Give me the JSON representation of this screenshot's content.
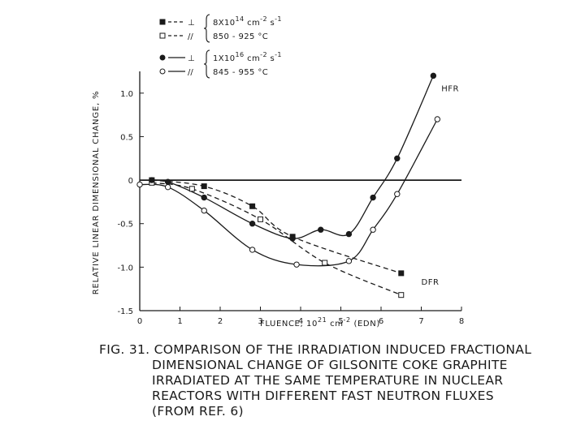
{
  "chart_data": {
    "type": "line",
    "xlabel": "FLUENCE, 10",
    "xlabel_exp": "21",
    "xlabel_unit": "cm",
    "xlabel_unit_exp": "-2",
    "xlabel_suffix": "(EDN)",
    "ylabel": "RELATIVE LINEAR DIMENSIONAL CHANGE, %",
    "xlim": [
      0,
      8
    ],
    "ylim": [
      -1.5,
      1.25
    ],
    "x_ticks": [
      0,
      1,
      2,
      3,
      4,
      5,
      6,
      7,
      8
    ],
    "y_ticks": [
      {
        "value": 1.0,
        "label": "1.0"
      },
      {
        "value": 0.5,
        "label": "0.5"
      },
      {
        "value": 0,
        "label": "0"
      },
      {
        "value": -0.5,
        "label": "-0.5"
      },
      {
        "value": -1.0,
        "label": "-1.0"
      },
      {
        "value": -1.5,
        "label": "-1.5"
      }
    ],
    "zero_line": true,
    "grid": false,
    "legend": {
      "placement": "top",
      "groups": [
        {
          "flux": "8X10",
          "flux_exp": "14",
          "flux_unit": "cm",
          "flux_unit_exp": "-2",
          "flux_unit2": "s",
          "flux_unit2_exp": "-1",
          "temp": "850 - 925 °C",
          "entries": [
            {
              "marker": "filled-square",
              "style": "dashed",
              "label": "⊥"
            },
            {
              "marker": "open-square",
              "style": "dashed",
              "label": "//"
            }
          ]
        },
        {
          "flux": "1X10",
          "flux_exp": "16",
          "flux_unit": "cm",
          "flux_unit_exp": "-2",
          "flux_unit2": "s",
          "flux_unit2_exp": "-1",
          "temp": "845 - 955 °C",
          "entries": [
            {
              "marker": "filled-circle",
              "style": "solid",
              "label": "⊥"
            },
            {
              "marker": "open-circle",
              "style": "solid",
              "label": "//"
            }
          ]
        }
      ]
    },
    "series": [
      {
        "marker": "filled-square",
        "style": "dashed",
        "x": [
          0.3,
          1.6,
          2.8,
          3.8,
          6.5
        ],
        "y": [
          0.0,
          -0.07,
          -0.3,
          -0.65,
          -1.07
        ]
      },
      {
        "marker": "open-square",
        "style": "dashed",
        "x": [
          0.3,
          1.3,
          3.0,
          4.6,
          6.5
        ],
        "y": [
          -0.03,
          -0.1,
          -0.45,
          -0.95,
          -1.32
        ]
      },
      {
        "marker": "filled-circle",
        "style": "solid",
        "x": [
          0.3,
          0.7,
          1.6,
          2.8,
          3.8,
          4.5,
          5.2,
          5.8,
          6.4,
          7.3
        ],
        "y": [
          0.0,
          -0.02,
          -0.2,
          -0.5,
          -0.67,
          -0.57,
          -0.62,
          -0.2,
          0.25,
          1.2
        ]
      },
      {
        "marker": "open-circle",
        "style": "solid",
        "x": [
          0.0,
          0.7,
          1.6,
          2.8,
          3.9,
          5.2,
          5.8,
          6.4,
          7.4
        ],
        "y": [
          -0.05,
          -0.08,
          -0.35,
          -0.8,
          -0.97,
          -0.93,
          -0.57,
          -0.16,
          0.7
        ]
      }
    ],
    "annotations": [
      {
        "text": "HFR",
        "x": 7.5,
        "y": 1.02
      },
      {
        "text": "DFR",
        "x": 7.0,
        "y": -1.2
      }
    ]
  },
  "caption": {
    "lines": [
      "FIG. 31. COMPARISON OF THE IRRADIATION INDUCED FRACTIONAL",
      "DIMENSIONAL CHANGE OF GILSONITE COKE GRAPHITE",
      "IRRADIATED AT THE SAME TEMPERATURE IN NUCLEAR",
      "REACTORS WITH DIFFERENT FAST NEUTRON FLUXES",
      "(FROM REF. 6)"
    ]
  }
}
